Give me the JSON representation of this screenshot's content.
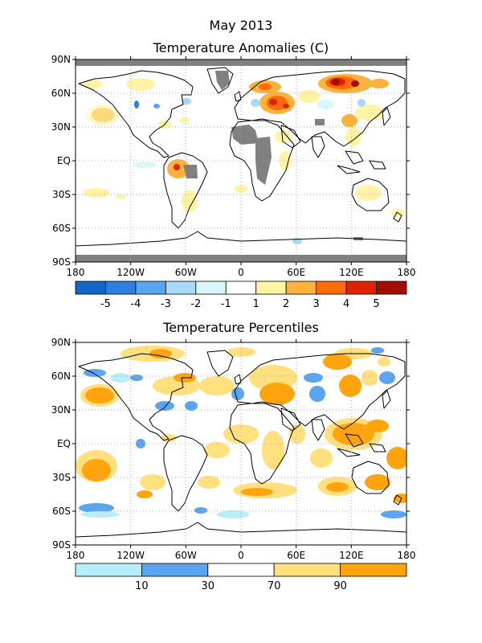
{
  "title_line1": "May 2013",
  "panels": [
    {
      "id": "anomalies",
      "title": "Temperature Anomalies (C)",
      "lat_labels": [
        "90N",
        "60N",
        "30N",
        "EQ",
        "30S",
        "60S",
        "90S"
      ],
      "lon_labels": [
        "180",
        "120W",
        "60W",
        "0",
        "60E",
        "120E",
        "180"
      ],
      "colorbar": {
        "colors": [
          "#1565c8",
          "#2f7fe0",
          "#5aa5f0",
          "#a8d8fb",
          "#d8f6fb",
          "#ffffff",
          "#fff3a6",
          "#fdb23b",
          "#fe6b0a",
          "#e02307",
          "#a20d02"
        ],
        "labels": [
          "-5",
          "-4",
          "-3",
          "-2",
          "-1",
          "1",
          "2",
          "3",
          "4",
          "5"
        ]
      }
    },
    {
      "id": "percentiles",
      "title": "Temperature Percentiles",
      "lat_labels": [
        "90N",
        "60N",
        "30N",
        "EQ",
        "30S",
        "60S",
        "90S"
      ],
      "lon_labels": [
        "180",
        "120W",
        "60W",
        "0",
        "60E",
        "120E",
        "180"
      ],
      "colorbar": {
        "colors": [
          "#b6eefb",
          "#5aa5f0",
          "#ffffff",
          "#ffe07c",
          "#ffa40d"
        ],
        "labels": [
          "10",
          "30",
          "70",
          "90"
        ]
      }
    }
  ],
  "colors": {
    "missing": "#808080",
    "land_outline": "#000000",
    "grid": "#a0a0a0",
    "frame": "#000000"
  }
}
